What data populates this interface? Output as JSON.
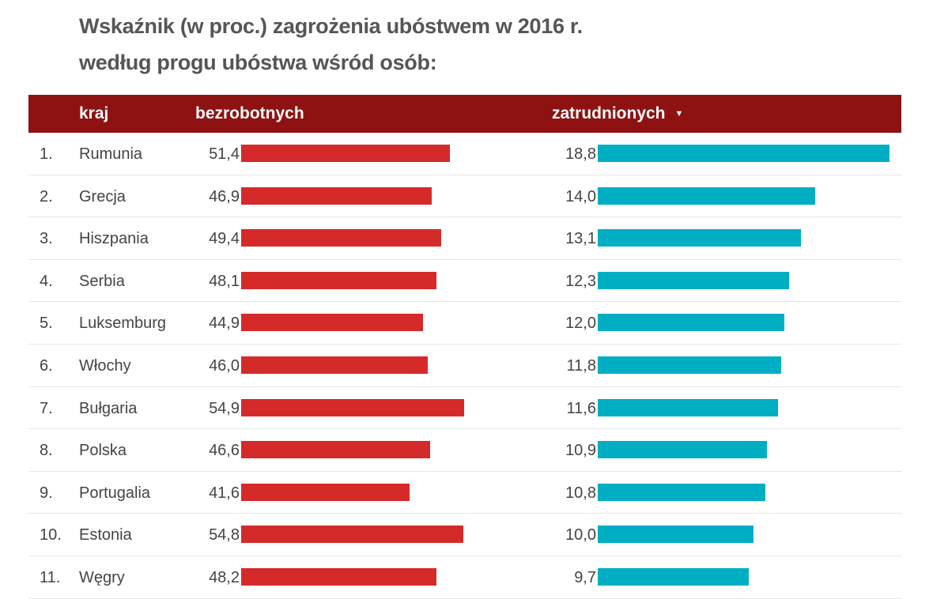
{
  "title_line1": "Wskaźnik (w proc.) zagrożenia ubóstwem w 2016 r.",
  "title_line2": "według progu ubóstwa wśród osób:",
  "header": {
    "country": "kraj",
    "unemployed": "bezrobotnych",
    "employed": "zatrudnionych",
    "sort_icon": "caret-down-icon"
  },
  "colors": {
    "header": "#8f1212",
    "unemployed_bar": "#d42a2a",
    "employed_bar": "#00aec4"
  },
  "chart_data": {
    "type": "table",
    "columns": [
      "kraj",
      "bezrobotnych",
      "zatrudnionych"
    ],
    "sorted_by": "zatrudnionych",
    "rows": [
      {
        "rank": "1.",
        "country": "Rumunia",
        "unemployed": "51,4",
        "employed": "18,8"
      },
      {
        "rank": "2.",
        "country": "Grecja",
        "unemployed": "46,9",
        "employed": "14,0"
      },
      {
        "rank": "3.",
        "country": "Hiszpania",
        "unemployed": "49,4",
        "employed": "13,1"
      },
      {
        "rank": "4.",
        "country": "Serbia",
        "unemployed": "48,1",
        "employed": "12,3"
      },
      {
        "rank": "5.",
        "country": "Luksemburg",
        "unemployed": "44,9",
        "employed": "12,0"
      },
      {
        "rank": "6.",
        "country": "Włochy",
        "unemployed": "46,0",
        "employed": "11,8"
      },
      {
        "rank": "7.",
        "country": "Bułgaria",
        "unemployed": "54,9",
        "employed": "11,6"
      },
      {
        "rank": "8.",
        "country": "Polska",
        "unemployed": "46,6",
        "employed": "10,9"
      },
      {
        "rank": "9.",
        "country": "Portugalia",
        "unemployed": "41,6",
        "employed": "10,8"
      },
      {
        "rank": "10.",
        "country": "Estonia",
        "unemployed": "54,8",
        "employed": "10,0"
      },
      {
        "rank": "11.",
        "country": "Węgry",
        "unemployed": "48,2",
        "employed": "9,7"
      }
    ]
  }
}
